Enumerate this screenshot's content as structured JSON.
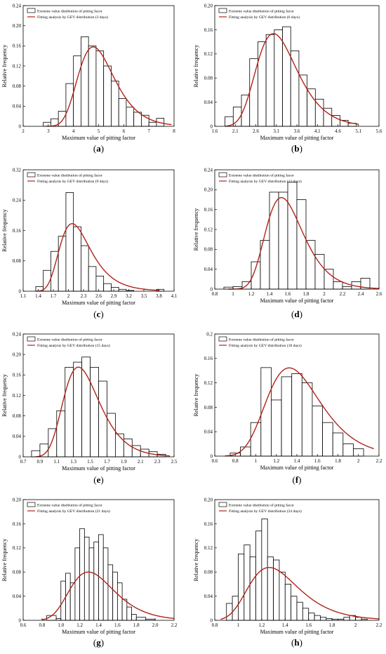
{
  "colors": {
    "fit": "#b22318",
    "bar_edge": "#000000",
    "bar_fill": "#ffffff",
    "axis": "#000000"
  },
  "chart_data": [
    {
      "id": "a",
      "type": "bar",
      "panel_label": "a",
      "xlabel": "Maximum value of pitting factor",
      "ylabel": "Relative frequency",
      "xlim": [
        2,
        8
      ],
      "ylim": [
        0,
        0.24
      ],
      "xticks": [
        "2",
        "3",
        "4",
        "5",
        "6",
        "7",
        "8"
      ],
      "yticks": [
        "0",
        "0.04",
        "0.08",
        "0.12",
        "0.16",
        "0.20",
        "0.24"
      ],
      "legend": [
        "Extreme value distibution of pitting facor",
        "Fitting analysis by GEV distribution (3 days)"
      ],
      "bar_edges": [
        2.8,
        3.1,
        3.4,
        3.7,
        4.0,
        4.3,
        4.6,
        4.9,
        5.2,
        5.5,
        5.8,
        6.1,
        6.4,
        6.7,
        7.0,
        7.3,
        7.6
      ],
      "values": [
        0.008,
        0.015,
        0.03,
        0.085,
        0.14,
        0.178,
        0.16,
        0.15,
        0.12,
        0.09,
        0.055,
        0.038,
        0.028,
        0.022,
        0.008,
        0.016
      ],
      "fit": {
        "mu": 4.75,
        "sigma": 0.7,
        "xi": -0.05,
        "bin": 0.3,
        "x_range": [
          2.9,
          7.9
        ]
      }
    },
    {
      "id": "b",
      "type": "bar",
      "panel_label": "b",
      "xlabel": "Maximum value of pitting factor",
      "ylabel": "Relative frequency",
      "xlim": [
        1.6,
        5.6
      ],
      "ylim": [
        0,
        0.2
      ],
      "xticks": [
        "1.6",
        "2.1",
        "2.6",
        "3.1",
        "3.6",
        "4.1",
        "4.6",
        "5.1",
        "5.6"
      ],
      "yticks": [
        "0",
        "0.04",
        "0.08",
        "0.12",
        "0.16",
        "0.20"
      ],
      "legend": [
        "Extreme value distibution of pitting facor",
        "Fitting analysis by GEV distribution (6 days)"
      ],
      "bar_edges": [
        1.85,
        2.05,
        2.25,
        2.45,
        2.65,
        2.85,
        3.05,
        3.25,
        3.45,
        3.65,
        3.85,
        4.05,
        4.25,
        4.45,
        4.65,
        4.85,
        5.05
      ],
      "values": [
        0.016,
        0.032,
        0.052,
        0.112,
        0.14,
        0.152,
        0.16,
        0.165,
        0.125,
        0.085,
        0.062,
        0.045,
        0.03,
        0.018,
        0.01,
        0.005
      ],
      "fit": {
        "mu": 3.0,
        "sigma": 0.48,
        "xi": -0.06,
        "bin": 0.2,
        "x_range": [
          1.85,
          5.1
        ]
      }
    },
    {
      "id": "c",
      "type": "bar",
      "panel_label": "c",
      "xlabel": "Maximum value of pitting factor",
      "ylabel": "Relative frequency",
      "xlim": [
        1.1,
        4.1
      ],
      "ylim": [
        0,
        0.32
      ],
      "xticks": [
        "1.1",
        "1.4",
        "1.7",
        "2",
        "2.3",
        "2.6",
        "2.9",
        "3.2",
        "3.5",
        "3.8",
        "4.1"
      ],
      "yticks": [
        "0",
        "0.08",
        "0.16",
        "0.24",
        "0.32"
      ],
      "legend": [
        "Extreme value distibution of pitting facor",
        "Fitting analysis by GEV distribution (9 days)"
      ],
      "bar_edges": [
        1.35,
        1.5,
        1.65,
        1.8,
        1.95,
        2.1,
        2.25,
        2.4,
        2.55,
        2.7,
        2.85,
        3.0,
        3.15,
        3.3,
        3.45,
        3.6,
        3.75,
        3.9
      ],
      "values": [
        0.012,
        0.055,
        0.105,
        0.145,
        0.26,
        0.17,
        0.12,
        0.065,
        0.04,
        0.02,
        0.01,
        0.005,
        0.002,
        0,
        0,
        0,
        0.005
      ],
      "fit": {
        "mu": 2.08,
        "sigma": 0.31,
        "xi": 0.02,
        "bin": 0.15,
        "x_range": [
          1.35,
          3.8
        ]
      }
    },
    {
      "id": "d",
      "type": "bar",
      "panel_label": "d",
      "xlabel": "Maximum value of pitting factor",
      "ylabel": "Relative frequency",
      "xlim": [
        0.8,
        2.6
      ],
      "ylim": [
        0,
        0.24
      ],
      "xticks": [
        "0.8",
        "1",
        "1.2",
        "1.4",
        "1.6",
        "1.8",
        "2",
        "2.2",
        "2.4",
        "2.6"
      ],
      "yticks": [
        "0",
        "0.04",
        "0.08",
        "0.12",
        "0.16",
        "0.20",
        "0.24"
      ],
      "legend": [
        "Extreme value distibution of pitting facor",
        "Fitting analysis by GEV distribution (12 days)"
      ],
      "bar_edges": [
        0.9,
        1.0,
        1.1,
        1.2,
        1.3,
        1.4,
        1.5,
        1.6,
        1.7,
        1.8,
        1.9,
        2.0,
        2.1,
        2.2,
        2.3,
        2.4,
        2.5
      ],
      "values": [
        0.004,
        0.005,
        0.015,
        0.055,
        0.098,
        0.195,
        0.195,
        0.215,
        0.18,
        0.098,
        0.07,
        0.04,
        0.015,
        0.005,
        0.015,
        0.022
      ],
      "fit": {
        "mu": 1.52,
        "sigma": 0.2,
        "xi": -0.05,
        "bin": 0.1,
        "x_range": [
          0.95,
          2.6
        ]
      }
    },
    {
      "id": "e",
      "type": "bar",
      "panel_label": "e",
      "xlabel": "Maximum value of pitting factor",
      "ylabel": "Relative frequency",
      "xlim": [
        0.7,
        2.5
      ],
      "ylim": [
        0,
        0.24
      ],
      "xticks": [
        "0.7",
        "0.9",
        "1.1",
        "1.3",
        "1.5",
        "1.7",
        "1.9",
        "2.1",
        "2.3",
        "2.5"
      ],
      "yticks": [
        "0",
        "0.04",
        "0.08",
        "0.12",
        "0.16",
        "0.20",
        "0.24"
      ],
      "legend": [
        "Extreme value distibution of pitting facor",
        "Fitting analysis by GEV distribution (15 days)"
      ],
      "bar_edges": [
        0.8,
        0.9,
        1.0,
        1.1,
        1.2,
        1.3,
        1.4,
        1.5,
        1.6,
        1.7,
        1.8,
        1.9,
        2.0,
        2.1,
        2.2,
        2.3,
        2.4
      ],
      "values": [
        0.012,
        0.025,
        0.055,
        0.09,
        0.175,
        0.185,
        0.195,
        0.175,
        0.148,
        0.085,
        0.045,
        0.035,
        0.022,
        0.015,
        0.01,
        0.005
      ],
      "fit": {
        "mu": 1.35,
        "sigma": 0.21,
        "xi": -0.04,
        "bin": 0.1,
        "x_range": [
          0.85,
          2.45
        ]
      }
    },
    {
      "id": "f",
      "type": "bar",
      "panel_label": "f",
      "xlabel": "Maximum value of pitting factor",
      "ylabel": "Relative frequency",
      "xlim": [
        0.6,
        2.2
      ],
      "ylim": [
        0,
        0.2
      ],
      "xticks": [
        "0.6",
        "0.8",
        "1",
        "1.2",
        "1.4",
        "1.6",
        "1.8",
        "2",
        "2.2"
      ],
      "yticks": [
        "0",
        "0.04",
        "0.08",
        "0.12",
        "0.16",
        "0.2"
      ],
      "legend": [
        "Extreme value distibution of pitting facor",
        "Fitting analysis by GEV distribution (18 days)"
      ],
      "bar_edges": [
        0.75,
        0.85,
        0.95,
        1.05,
        1.15,
        1.25,
        1.35,
        1.45,
        1.55,
        1.65,
        1.75,
        1.85,
        1.95,
        2.05
      ],
      "values": [
        0.005,
        0.015,
        0.055,
        0.145,
        0.092,
        0.13,
        0.135,
        0.12,
        0.082,
        0.055,
        0.038,
        0.02,
        0.012
      ],
      "fit": {
        "mu": 1.31,
        "sigma": 0.255,
        "xi": -0.06,
        "bin": 0.1,
        "x_range": [
          0.7,
          2.15
        ]
      }
    },
    {
      "id": "g",
      "type": "bar",
      "panel_label": "g",
      "xlabel": "Maximum value of pitting factor",
      "ylabel": "Relative frequency",
      "xlim": [
        0.6,
        2.2
      ],
      "ylim": [
        0,
        0.2
      ],
      "xticks": [
        "0.6",
        "0.8",
        "1.0",
        "1.2",
        "1.4",
        "1.6",
        "1.8",
        "2.0",
        "2.2"
      ],
      "yticks": [
        "0",
        "0.04",
        "0.08",
        "0.12",
        "0.16",
        "0.20"
      ],
      "legend": [
        "Extreme value distibution of pitting facor",
        "Fitting analysis by GEV distribution (21 days)"
      ],
      "bar_edges": [
        0.85,
        0.95,
        1.0,
        1.05,
        1.1,
        1.15,
        1.2,
        1.25,
        1.3,
        1.35,
        1.4,
        1.45,
        1.5,
        1.55,
        1.6,
        1.65,
        1.7,
        1.75,
        1.8,
        1.9,
        2.0
      ],
      "values": [
        0.008,
        0.003,
        0.065,
        0.078,
        0.062,
        0.12,
        0.152,
        0.138,
        0.12,
        0.13,
        0.142,
        0.12,
        0.092,
        0.08,
        0.062,
        0.035,
        0.022,
        0.01,
        0.005,
        0.002
      ],
      "fit": {
        "mu": 1.28,
        "sigma": 0.23,
        "xi": -0.05,
        "bin": 0.05,
        "x_range": [
          0.8,
          2.2
        ]
      }
    },
    {
      "id": "h",
      "type": "bar",
      "panel_label": "h",
      "xlabel": "Maximum value of pitting factor",
      "ylabel": "Relative frequency",
      "xlim": [
        0.8,
        2.2
      ],
      "ylim": [
        0,
        0.2
      ],
      "xticks": [
        "0.8",
        "1",
        "1.2",
        "1.4",
        "1.6",
        "1.8",
        "2",
        "2.2"
      ],
      "yticks": [
        "0",
        "0.04",
        "0.08",
        "0.12",
        "0.16",
        "0.20"
      ],
      "legend": [
        "Extreme value distibution of pitting facor",
        "Fitting analysis by GEV distribution (24 days)"
      ],
      "bar_edges": [
        0.9,
        0.95,
        1.0,
        1.05,
        1.1,
        1.15,
        1.2,
        1.25,
        1.3,
        1.35,
        1.4,
        1.45,
        1.5,
        1.55,
        1.6,
        1.65,
        1.7,
        1.75,
        1.8,
        1.85,
        1.9,
        1.95,
        2.0,
        2.05,
        2.1
      ],
      "values": [
        0.028,
        0.04,
        0.11,
        0.125,
        0.105,
        0.148,
        0.168,
        0.105,
        0.1,
        0.08,
        0.06,
        0.04,
        0.03,
        0.02,
        0.012,
        0.008,
        0.005,
        0.003,
        0.002,
        0.002,
        0.005,
        0.008,
        0.005,
        0.002
      ],
      "fit": {
        "mu": 1.26,
        "sigma": 0.21,
        "xi": -0.02,
        "bin": 0.05,
        "x_range": [
          0.85,
          2.2
        ]
      }
    }
  ]
}
